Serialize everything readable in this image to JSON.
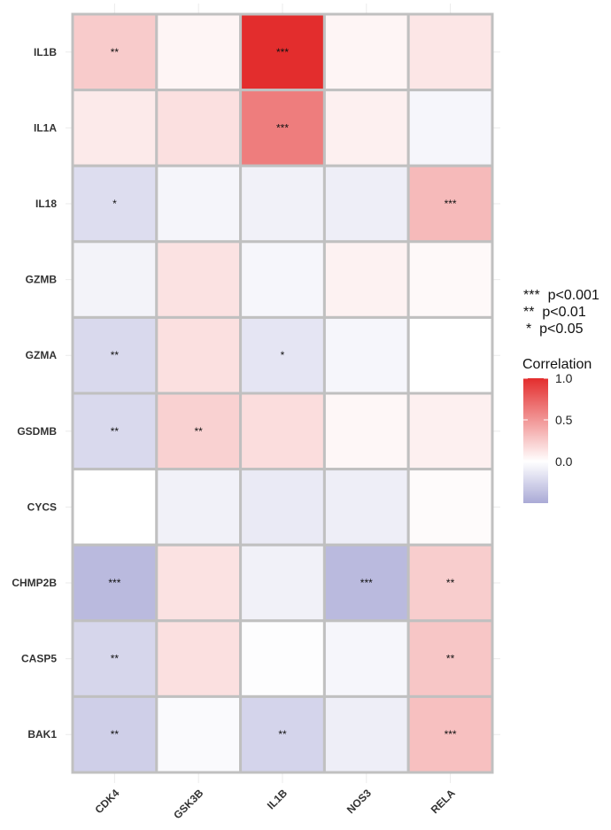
{
  "chart_data": {
    "type": "heatmap",
    "rows": [
      "IL1B",
      "IL1A",
      "IL18",
      "GZMB",
      "GZMA",
      "GSDMB",
      "CYCS",
      "CHMP2B",
      "CASP5",
      "BAK1"
    ],
    "columns": [
      "CDK4",
      "GSK3B",
      "IL1B",
      "NOS3",
      "RELA"
    ],
    "values": [
      [
        0.25,
        0.05,
        1.0,
        0.05,
        0.12
      ],
      [
        0.1,
        0.15,
        0.62,
        0.07,
        -0.05
      ],
      [
        -0.2,
        -0.06,
        -0.08,
        -0.1,
        0.33
      ],
      [
        -0.07,
        0.14,
        -0.05,
        0.06,
        0.03
      ],
      [
        -0.22,
        0.15,
        -0.15,
        -0.05,
        0.0
      ],
      [
        -0.22,
        0.22,
        0.16,
        0.04,
        0.07
      ],
      [
        0.0,
        -0.08,
        -0.12,
        -0.1,
        0.02
      ],
      [
        -0.4,
        0.14,
        -0.08,
        -0.4,
        0.24
      ],
      [
        -0.24,
        0.15,
        -0.01,
        -0.05,
        0.27
      ],
      [
        -0.28,
        -0.03,
        -0.25,
        -0.1,
        0.3
      ]
    ],
    "significance": [
      [
        "**",
        "",
        "***",
        "",
        ""
      ],
      [
        "",
        "",
        "***",
        "",
        ""
      ],
      [
        "*",
        "",
        "",
        "",
        "***"
      ],
      [
        "",
        "",
        "",
        "",
        ""
      ],
      [
        "**",
        "",
        "*",
        "",
        ""
      ],
      [
        "**",
        "**",
        "",
        "",
        ""
      ],
      [
        "",
        "",
        "",
        "",
        ""
      ],
      [
        "***",
        "",
        "",
        "***",
        "**"
      ],
      [
        "**",
        "",
        "",
        "",
        "**"
      ],
      [
        "**",
        "",
        "**",
        "",
        "***"
      ]
    ],
    "significance_legend": [
      "***  p<0.001",
      "**  p<0.01",
      "*  p<0.05"
    ],
    "legend_title": "Correlation",
    "legend_ticks": [
      1.0,
      0.5,
      0.0
    ],
    "legend_tick_labels": [
      "1.0",
      "0.5",
      "0.0"
    ],
    "color_range": [
      -0.5,
      1.0
    ],
    "colors": {
      "high": "#e32d2d",
      "mid": "#ffffff",
      "low": "#a9a9d6",
      "border": "#c0c0c0"
    },
    "legend_position": "right"
  }
}
